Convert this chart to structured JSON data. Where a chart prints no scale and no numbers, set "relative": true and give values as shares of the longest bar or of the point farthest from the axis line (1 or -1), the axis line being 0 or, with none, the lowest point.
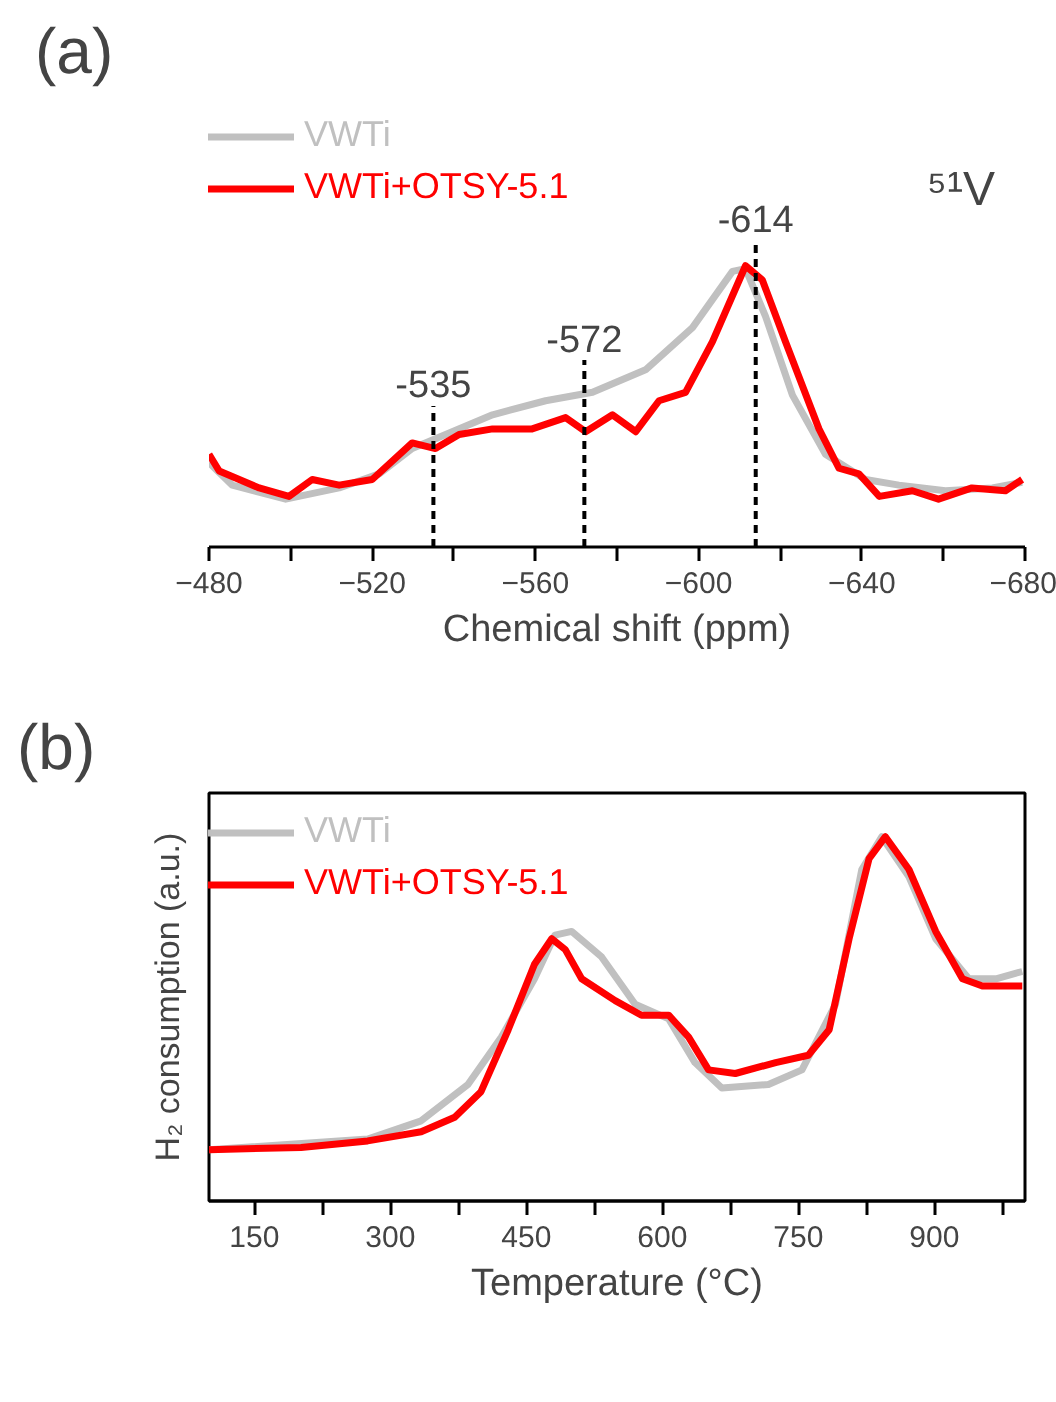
{
  "chart_data": [
    {
      "type": "line",
      "title": "(a)",
      "xlabel": "Chemical shift (ppm)",
      "relative": true,
      "legend": "top left",
      "xlim": [
        -480,
        -680
      ],
      "xticks": [
        -480,
        {
          "value": -500,
          "label": null
        },
        -520,
        {
          "value": -540,
          "label": null
        },
        -560,
        {
          "value": -580,
          "label": null
        },
        -600,
        {
          "value": -620,
          "label": null
        },
        -640,
        {
          "value": -660,
          "label": null
        },
        -680
      ],
      "annotations": [
        "⁵¹V"
      ],
      "ref_lines": [
        {
          "axis": "x",
          "value": -535,
          "label": "-535",
          "line_style": "dashed"
        },
        {
          "axis": "x",
          "value": -572,
          "label": "-572",
          "line_style": "dashed"
        },
        {
          "axis": "x",
          "value": -614,
          "label": "-614",
          "line_style": "dashed"
        }
      ],
      "series": [
        {
          "name": "VWTi",
          "color": "#c0c0c0",
          "x": [
            -480,
            -485.7,
            -498.8,
            -511.9,
            -521.7,
            -529.8,
            -538,
            -549.5,
            -562.5,
            -574,
            -587,
            -598.5,
            -608.3,
            -611.5,
            -616.4,
            -623,
            -631.1,
            -640.9,
            -649.1,
            -660.5,
            -672,
            -679.3
          ],
          "values": [
            0.3,
            0.22,
            0.17,
            0.21,
            0.26,
            0.35,
            0.4,
            0.47,
            0.52,
            0.55,
            0.63,
            0.78,
            0.98,
            0.99,
            0.82,
            0.54,
            0.33,
            0.24,
            0.22,
            0.2,
            0.21,
            0.23
          ]
        },
        {
          "name": "VWTi+OTSY-5.1",
          "color": "#ff0000",
          "x": [
            -480,
            -482.5,
            -492.3,
            -499.6,
            -505.3,
            -511.9,
            -520,
            -529.8,
            -535.5,
            -541.3,
            -549.5,
            -559.2,
            -567.4,
            -572.3,
            -578.9,
            -584.6,
            -590.3,
            -596.8,
            -603.4,
            -611.5,
            -615.6,
            -621.3,
            -629.5,
            -634.4,
            -639.3,
            -644.3,
            -652.4,
            -658.8,
            -667,
            -675.2,
            -679.3
          ],
          "values": [
            0.33,
            0.27,
            0.21,
            0.18,
            0.24,
            0.22,
            0.24,
            0.37,
            0.35,
            0.4,
            0.42,
            0.42,
            0.46,
            0.41,
            0.47,
            0.41,
            0.52,
            0.55,
            0.73,
            1.0,
            0.95,
            0.73,
            0.42,
            0.28,
            0.26,
            0.18,
            0.2,
            0.17,
            0.21,
            0.2,
            0.24
          ]
        }
      ]
    },
    {
      "type": "line",
      "title": "(b)",
      "xlabel": "Temperature (°C)",
      "ylabel": "H₂ consumption (a.u.)",
      "relative": true,
      "legend": "top left",
      "xlim": [
        100,
        1000
      ],
      "xticks": [
        150,
        {
          "value": 225,
          "label": null
        },
        300,
        {
          "value": 375,
          "label": null
        },
        450,
        {
          "value": 525,
          "label": null
        },
        600,
        {
          "value": 675,
          "label": null
        },
        750,
        {
          "value": 825,
          "label": null
        },
        900,
        {
          "value": 975,
          "label": null
        }
      ],
      "series": [
        {
          "name": "VWTi",
          "color": "#c0c0c0",
          "x": [
            100,
            275,
            334,
            385.6,
            422.5,
            459,
            481.6,
            500,
            533,
            570,
            607,
            636,
            665.6,
            717,
            754,
            791,
            820,
            842,
            872,
            901.5,
            938,
            968,
            997
          ],
          "values": [
            0.141,
            0.17,
            0.22,
            0.32,
            0.45,
            0.61,
            0.73,
            0.74,
            0.67,
            0.54,
            0.5,
            0.38,
            0.31,
            0.32,
            0.36,
            0.54,
            0.91,
            1.0,
            0.89,
            0.72,
            0.61,
            0.61,
            0.63
          ]
        },
        {
          "name": "VWTi+OTSY-5.1",
          "color": "#ff0000",
          "x": [
            100,
            201.5,
            275,
            334,
            371,
            400,
            430,
            459,
            478,
            493,
            511,
            548,
            577,
            607,
            629,
            651,
            680.5,
            725,
            761,
            784,
            806,
            828,
            846,
            872,
            901.5,
            931,
            953,
            997
          ],
          "values": [
            0.141,
            0.147,
            0.165,
            0.19,
            0.23,
            0.3,
            0.47,
            0.65,
            0.72,
            0.69,
            0.61,
            0.55,
            0.51,
            0.51,
            0.45,
            0.36,
            0.35,
            0.38,
            0.4,
            0.47,
            0.72,
            0.94,
            1.0,
            0.91,
            0.74,
            0.61,
            0.59,
            0.59
          ]
        }
      ]
    }
  ]
}
